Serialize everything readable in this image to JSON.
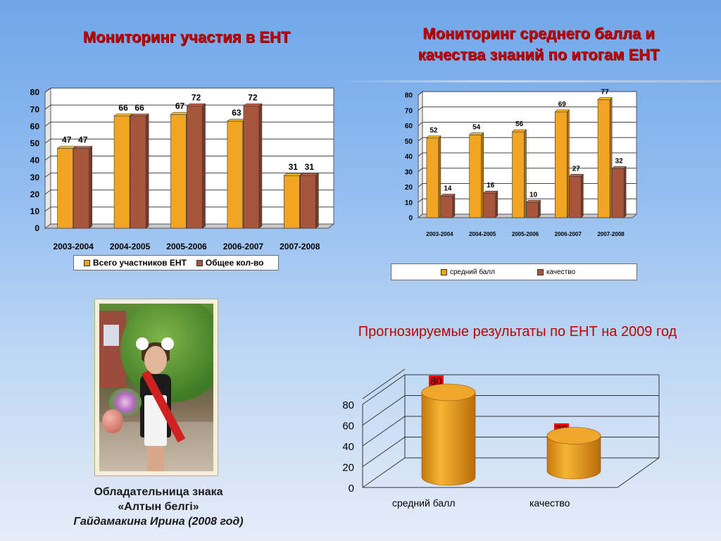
{
  "titles": {
    "left": "Мониторинг участия в ЕНТ",
    "right_line1": "Мониторинг среднего балла и",
    "right_line2": "качества  знаний по итогам ЕНТ"
  },
  "caption": {
    "line1": "Обладательница знака",
    "line2": "«Алтын белгі»",
    "line3": "Гайдамакина Ирина  (2008 год)"
  },
  "forecast_title": "Прогнозируемые результаты по ЕНТ  на 2009 год",
  "colors": {
    "orange": "#f2a423",
    "brown": "#a8553e",
    "title_red": "#c00000"
  },
  "chart_data": [
    {
      "type": "bar",
      "title": "",
      "categories": [
        "2003-2004",
        "2004-2005",
        "2005-2006",
        "2006-2007",
        "2007-2008"
      ],
      "series": [
        {
          "name": "Всего участников ЕНТ",
          "values": [
            47,
            66,
            67,
            63,
            31
          ]
        },
        {
          "name": "Общее кол-во",
          "values": [
            47,
            66,
            72,
            72,
            31
          ]
        }
      ],
      "yticks": [
        0,
        10,
        20,
        30,
        40,
        50,
        60,
        70,
        80
      ],
      "ylim": [
        0,
        80
      ],
      "grid": true,
      "legend": "bottom"
    },
    {
      "type": "bar",
      "title": "",
      "categories": [
        "2003-2004",
        "2004-2005",
        "2005-2006",
        "2006-2007",
        "2007-2008"
      ],
      "series": [
        {
          "name": "средний балл",
          "values": [
            52,
            54,
            56,
            69,
            77
          ]
        },
        {
          "name": "качество",
          "values": [
            14,
            16,
            10,
            27,
            32
          ]
        }
      ],
      "yticks": [
        0,
        10,
        20,
        30,
        40,
        50,
        60,
        70,
        80
      ],
      "ylim": [
        0,
        80
      ],
      "grid": true,
      "legend": "bottom"
    },
    {
      "type": "bar",
      "title": "",
      "categories": [
        "средний балл",
        "качество"
      ],
      "values": [
        80,
        33
      ],
      "yticks": [
        0,
        20,
        40,
        60,
        80
      ],
      "ylim": [
        0,
        100
      ],
      "grid": true
    }
  ]
}
